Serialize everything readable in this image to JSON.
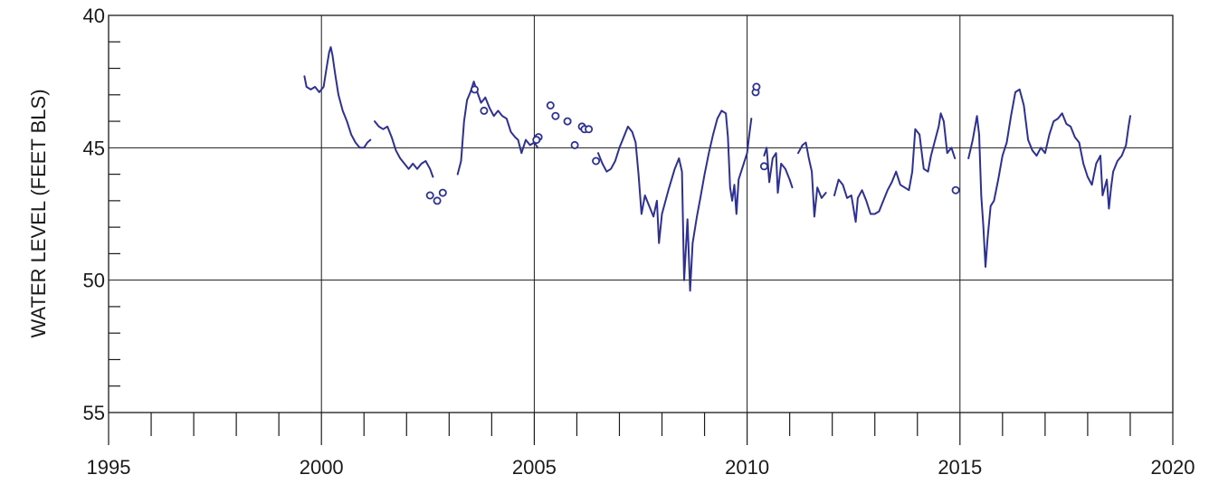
{
  "chart_data": {
    "type": "line",
    "title": "",
    "xlabel": "",
    "ylabel": "WATER LEVEL (FEET BLS)",
    "xlim": [
      1995,
      2020
    ],
    "ylim": [
      55,
      40
    ],
    "y_inverted": true,
    "x_ticks": [
      1995,
      2000,
      2005,
      2010,
      2015,
      2020
    ],
    "x_minor_step": 1,
    "y_ticks": [
      40,
      45,
      50,
      55
    ],
    "y_minor_step": 1,
    "grid": "major",
    "colors": {
      "series": "#2e3192",
      "axis": "#1a1a1a",
      "grid": "#1a1a1a"
    },
    "series": [
      {
        "style": "line",
        "values": [
          [
            [
              1999.6,
              42.3
            ],
            [
              1999.65,
              42.7
            ],
            [
              1999.75,
              42.8
            ],
            [
              1999.85,
              42.7
            ],
            [
              1999.95,
              42.9
            ],
            [
              2000.05,
              42.7
            ],
            [
              2000.12,
              42.0
            ],
            [
              2000.18,
              41.4
            ],
            [
              2000.22,
              41.2
            ],
            [
              2000.26,
              41.5
            ],
            [
              2000.32,
              42.2
            ],
            [
              2000.4,
              43.0
            ],
            [
              2000.5,
              43.6
            ],
            [
              2000.6,
              44.0
            ],
            [
              2000.7,
              44.5
            ],
            [
              2000.8,
              44.8
            ],
            [
              2000.9,
              45.0
            ],
            [
              2001.0,
              45.0
            ],
            [
              2001.08,
              44.8
            ],
            [
              2001.15,
              44.7
            ]
          ],
          [
            [
              2001.25,
              44.0
            ],
            [
              2001.35,
              44.2
            ],
            [
              2001.45,
              44.3
            ],
            [
              2001.55,
              44.2
            ],
            [
              2001.65,
              44.6
            ],
            [
              2001.75,
              45.1
            ],
            [
              2001.85,
              45.4
            ],
            [
              2001.95,
              45.6
            ],
            [
              2002.05,
              45.8
            ],
            [
              2002.15,
              45.6
            ],
            [
              2002.25,
              45.8
            ],
            [
              2002.35,
              45.6
            ],
            [
              2002.45,
              45.5
            ],
            [
              2002.55,
              45.8
            ],
            [
              2002.62,
              46.1
            ]
          ],
          [
            [
              2003.2,
              46.0
            ],
            [
              2003.28,
              45.5
            ],
            [
              2003.35,
              44.0
            ],
            [
              2003.42,
              43.2
            ],
            [
              2003.5,
              42.9
            ],
            [
              2003.58,
              42.5
            ],
            [
              2003.66,
              42.9
            ],
            [
              2003.75,
              43.3
            ],
            [
              2003.85,
              43.1
            ],
            [
              2003.95,
              43.5
            ],
            [
              2004.05,
              43.8
            ],
            [
              2004.15,
              43.6
            ],
            [
              2004.25,
              43.8
            ],
            [
              2004.35,
              43.9
            ],
            [
              2004.45,
              44.4
            ],
            [
              2004.55,
              44.6
            ],
            [
              2004.62,
              44.7
            ],
            [
              2004.7,
              45.2
            ],
            [
              2004.8,
              44.7
            ],
            [
              2004.9,
              44.9
            ],
            [
              2005.0,
              44.8
            ],
            [
              2005.08,
              45.0
            ]
          ],
          [
            [
              2006.5,
              45.2
            ],
            [
              2006.6,
              45.6
            ],
            [
              2006.7,
              45.9
            ],
            [
              2006.8,
              45.8
            ],
            [
              2006.9,
              45.5
            ],
            [
              2007.0,
              45.0
            ],
            [
              2007.1,
              44.6
            ],
            [
              2007.2,
              44.2
            ],
            [
              2007.3,
              44.4
            ],
            [
              2007.38,
              44.8
            ],
            [
              2007.45,
              46.0
            ],
            [
              2007.52,
              47.5
            ],
            [
              2007.6,
              46.8
            ],
            [
              2007.7,
              47.2
            ],
            [
              2007.8,
              47.6
            ],
            [
              2007.88,
              47.0
            ],
            [
              2007.93,
              48.6
            ],
            [
              2008.0,
              47.5
            ],
            [
              2008.15,
              46.6
            ],
            [
              2008.3,
              45.8
            ],
            [
              2008.4,
              45.4
            ],
            [
              2008.47,
              45.9
            ],
            [
              2008.52,
              50.0
            ],
            [
              2008.6,
              47.7
            ],
            [
              2008.66,
              50.4
            ],
            [
              2008.72,
              48.6
            ],
            [
              2008.82,
              47.6
            ],
            [
              2008.9,
              46.9
            ],
            [
              2009.0,
              46.0
            ],
            [
              2009.1,
              45.2
            ],
            [
              2009.2,
              44.5
            ],
            [
              2009.3,
              43.9
            ],
            [
              2009.4,
              43.6
            ],
            [
              2009.5,
              43.7
            ],
            [
              2009.55,
              44.6
            ],
            [
              2009.6,
              46.5
            ],
            [
              2009.65,
              47.0
            ],
            [
              2009.7,
              46.4
            ],
            [
              2009.75,
              47.5
            ],
            [
              2009.8,
              46.2
            ],
            [
              2009.9,
              45.7
            ],
            [
              2010.0,
              45.2
            ],
            [
              2010.05,
              44.5
            ],
            [
              2010.1,
              43.9
            ]
          ],
          [
            [
              2010.4,
              45.3
            ],
            [
              2010.46,
              45.0
            ],
            [
              2010.52,
              46.3
            ],
            [
              2010.6,
              45.4
            ],
            [
              2010.68,
              45.2
            ],
            [
              2010.72,
              46.7
            ],
            [
              2010.8,
              45.6
            ],
            [
              2010.9,
              45.8
            ],
            [
              2011.0,
              46.2
            ],
            [
              2011.06,
              46.5
            ]
          ],
          [
            [
              2011.2,
              45.2
            ],
            [
              2011.3,
              44.9
            ],
            [
              2011.38,
              44.8
            ],
            [
              2011.45,
              45.4
            ],
            [
              2011.52,
              45.9
            ],
            [
              2011.58,
              47.6
            ],
            [
              2011.65,
              46.5
            ],
            [
              2011.75,
              46.9
            ],
            [
              2011.85,
              46.7
            ]
          ],
          [
            [
              2012.05,
              46.8
            ],
            [
              2012.15,
              46.2
            ],
            [
              2012.25,
              46.4
            ],
            [
              2012.35,
              46.9
            ],
            [
              2012.45,
              46.8
            ],
            [
              2012.5,
              47.3
            ],
            [
              2012.55,
              47.8
            ],
            [
              2012.6,
              46.9
            ],
            [
              2012.7,
              46.6
            ],
            [
              2012.8,
              47.0
            ],
            [
              2012.9,
              47.5
            ],
            [
              2013.0,
              47.5
            ],
            [
              2013.1,
              47.4
            ],
            [
              2013.2,
              47.0
            ],
            [
              2013.3,
              46.6
            ],
            [
              2013.4,
              46.3
            ],
            [
              2013.5,
              45.9
            ],
            [
              2013.6,
              46.4
            ],
            [
              2013.7,
              46.5
            ],
            [
              2013.8,
              46.6
            ],
            [
              2013.88,
              45.9
            ],
            [
              2013.95,
              44.3
            ],
            [
              2014.05,
              44.5
            ],
            [
              2014.15,
              45.8
            ],
            [
              2014.25,
              45.9
            ],
            [
              2014.32,
              45.3
            ],
            [
              2014.4,
              44.8
            ],
            [
              2014.5,
              44.2
            ],
            [
              2014.55,
              43.7
            ],
            [
              2014.62,
              44.0
            ],
            [
              2014.7,
              45.2
            ],
            [
              2014.8,
              45.0
            ],
            [
              2014.88,
              45.4
            ]
          ],
          [
            [
              2015.2,
              45.4
            ],
            [
              2015.3,
              44.7
            ],
            [
              2015.4,
              43.8
            ],
            [
              2015.45,
              44.5
            ],
            [
              2015.5,
              46.8
            ],
            [
              2015.55,
              48.0
            ],
            [
              2015.6,
              49.5
            ],
            [
              2015.65,
              48.4
            ],
            [
              2015.72,
              47.2
            ],
            [
              2015.8,
              47.0
            ],
            [
              2015.9,
              46.2
            ],
            [
              2016.0,
              45.3
            ],
            [
              2016.1,
              44.8
            ],
            [
              2016.2,
              43.8
            ],
            [
              2016.3,
              42.9
            ],
            [
              2016.4,
              42.8
            ],
            [
              2016.5,
              43.4
            ],
            [
              2016.6,
              44.7
            ],
            [
              2016.7,
              45.1
            ],
            [
              2016.8,
              45.3
            ],
            [
              2016.9,
              45.0
            ],
            [
              2017.0,
              45.2
            ],
            [
              2017.1,
              44.5
            ],
            [
              2017.2,
              44.0
            ],
            [
              2017.3,
              43.9
            ],
            [
              2017.4,
              43.7
            ],
            [
              2017.5,
              44.1
            ],
            [
              2017.6,
              44.2
            ],
            [
              2017.7,
              44.6
            ],
            [
              2017.8,
              44.8
            ],
            [
              2017.9,
              45.6
            ],
            [
              2018.0,
              46.1
            ],
            [
              2018.1,
              46.4
            ],
            [
              2018.2,
              45.6
            ],
            [
              2018.3,
              45.3
            ],
            [
              2018.35,
              46.8
            ],
            [
              2018.45,
              46.2
            ],
            [
              2018.5,
              47.3
            ],
            [
              2018.55,
              46.5
            ],
            [
              2018.6,
              45.9
            ],
            [
              2018.7,
              45.5
            ],
            [
              2018.8,
              45.3
            ],
            [
              2018.9,
              44.9
            ],
            [
              2018.96,
              44.2
            ],
            [
              2019.0,
              43.8
            ]
          ]
        ]
      },
      {
        "style": "markers",
        "values": [
          [
            2002.55,
            46.8
          ],
          [
            2002.72,
            47.0
          ],
          [
            2002.85,
            46.7
          ],
          [
            2003.6,
            42.8
          ],
          [
            2003.82,
            43.6
          ],
          [
            2005.1,
            44.6
          ],
          [
            2005.05,
            44.7
          ],
          [
            2005.38,
            43.4
          ],
          [
            2005.5,
            43.8
          ],
          [
            2005.78,
            44.0
          ],
          [
            2005.95,
            44.9
          ],
          [
            2006.12,
            44.2
          ],
          [
            2006.18,
            44.3
          ],
          [
            2006.28,
            44.3
          ],
          [
            2006.45,
            45.5
          ],
          [
            2010.2,
            42.9
          ],
          [
            2010.22,
            42.7
          ],
          [
            2010.4,
            45.7
          ],
          [
            2014.9,
            46.6
          ]
        ]
      }
    ]
  }
}
